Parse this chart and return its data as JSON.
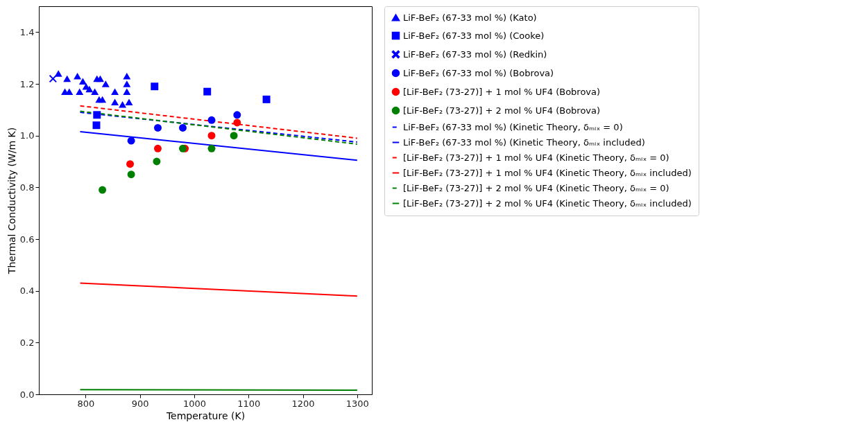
{
  "chart_data": {
    "type": "scatter",
    "xlabel": "Temperature (K)",
    "ylabel": "Thermal Conductivity (W/m K)",
    "xlim": [
      714,
      1327
    ],
    "ylim": [
      0,
      1.5
    ],
    "xticks": [
      800,
      900,
      1000,
      1100,
      1200,
      1300
    ],
    "yticks": [
      {
        "value": 0,
        "label": "0.0"
      },
      {
        "value": 0.2,
        "label": "0.2"
      },
      {
        "value": 0.4,
        "label": "0.4"
      },
      {
        "value": 0.6,
        "label": "0.6"
      },
      {
        "value": 0.8,
        "label": "0.8"
      },
      {
        "value": 1,
        "label": "1.0"
      },
      {
        "value": 1.2,
        "label": "1.2"
      },
      {
        "value": 1.4,
        "label": "1.4"
      }
    ],
    "grid": false,
    "legend": "right",
    "series": [
      {
        "name": "LiF-BeF₂ (67-33 mol %) (Kato)",
        "type": "scatter",
        "marker": "triangle",
        "color": "#0000ff",
        "x": [
          750,
          766,
          785,
          795,
          821,
          827,
          837,
          876,
          876,
          762,
          770,
          789,
          801,
          807,
          817,
          825,
          831,
          854,
          854,
          868,
          876,
          880
        ],
        "values": [
          1.24,
          1.22,
          1.23,
          1.21,
          1.22,
          1.22,
          1.2,
          1.23,
          1.2,
          1.17,
          1.17,
          1.17,
          1.19,
          1.18,
          1.17,
          1.14,
          1.14,
          1.17,
          1.13,
          1.12,
          1.17,
          1.13
        ]
      },
      {
        "name": "LiF-BeF₂ (67-33 mol %) (Cooke)",
        "type": "scatter",
        "marker": "square",
        "color": "#0000ff",
        "x": [
          927,
          1024,
          1133,
          821,
          820
        ],
        "values": [
          1.19,
          1.17,
          1.14,
          1.08,
          1.04
        ]
      },
      {
        "name": "LiF-BeF₂ (67-33 mol %) (Redkin)",
        "type": "scatter",
        "marker": "cross",
        "color": "#0000ff",
        "x": [
          740
        ],
        "values": [
          1.22
        ]
      },
      {
        "name": "LiF-BeF₂ (67-33 mol %) (Bobrova)",
        "type": "scatter",
        "marker": "circle",
        "color": "#0000ff",
        "x": [
          884,
          933,
          979,
          1032,
          1079
        ],
        "values": [
          0.98,
          1.03,
          1.03,
          1.06,
          1.08
        ]
      },
      {
        "name": "[LiF-BeF₂ (73-27)] + 1 mol % UF4 (Bobrova)",
        "type": "scatter",
        "marker": "circle",
        "color": "#ff0000",
        "x": [
          882,
          933,
          983,
          1032,
          1079
        ],
        "values": [
          0.89,
          0.95,
          0.95,
          1.0,
          1.05
        ]
      },
      {
        "name": "[LiF-BeF₂ (73-27)] + 2 mol % UF4 (Bobrova)",
        "type": "scatter",
        "marker": "circle",
        "color": "#008000",
        "x": [
          831,
          884,
          931,
          979,
          1032,
          1073
        ],
        "values": [
          0.79,
          0.85,
          0.9,
          0.95,
          0.95,
          1.0
        ]
      },
      {
        "name": "LiF-BeF₂ (67-33 mol %) (Kinetic Theory, δₘᵢₓ = 0)",
        "type": "line",
        "line_style": "dashed",
        "color": "#0000ff",
        "x": [
          790,
          1300
        ],
        "values": [
          1.09,
          0.975
        ]
      },
      {
        "name": "LiF-BeF₂ (67-33 mol %) (Kinetic Theory, δₘᵢₓ included)",
        "type": "line",
        "line_style": "solid",
        "color": "#0000ff",
        "x": [
          790,
          1300
        ],
        "values": [
          1.015,
          0.905
        ]
      },
      {
        "name": "[LiF-BeF₂ (73-27)] + 1 mol % UF4 (Kinetic Theory, δₘᵢₓ = 0)",
        "type": "line",
        "line_style": "dashed",
        "color": "#ff0000",
        "x": [
          790,
          1300
        ],
        "values": [
          1.115,
          0.99
        ]
      },
      {
        "name": "[LiF-BeF₂ (73-27)] + 1 mol % UF4 (Kinetic Theory, δₘᵢₓ included)",
        "type": "line",
        "line_style": "solid",
        "color": "#ff0000",
        "x": [
          790,
          1300
        ],
        "values": [
          0.43,
          0.38
        ]
      },
      {
        "name": "[LiF-BeF₂ (73-27)] + 2 mol % UF4 (Kinetic Theory, δₘᵢₓ = 0)",
        "type": "line",
        "line_style": "dashed",
        "color": "#008000",
        "x": [
          790,
          1300
        ],
        "values": [
          1.094,
          0.967
        ]
      },
      {
        "name": "[LiF-BeF₂ (73-27)] + 2 mol % UF4 (Kinetic Theory, δₘᵢₓ included)",
        "type": "line",
        "line_style": "solid",
        "color": "#008000",
        "x": [
          790,
          1300
        ],
        "values": [
          0.018,
          0.016
        ]
      }
    ]
  }
}
